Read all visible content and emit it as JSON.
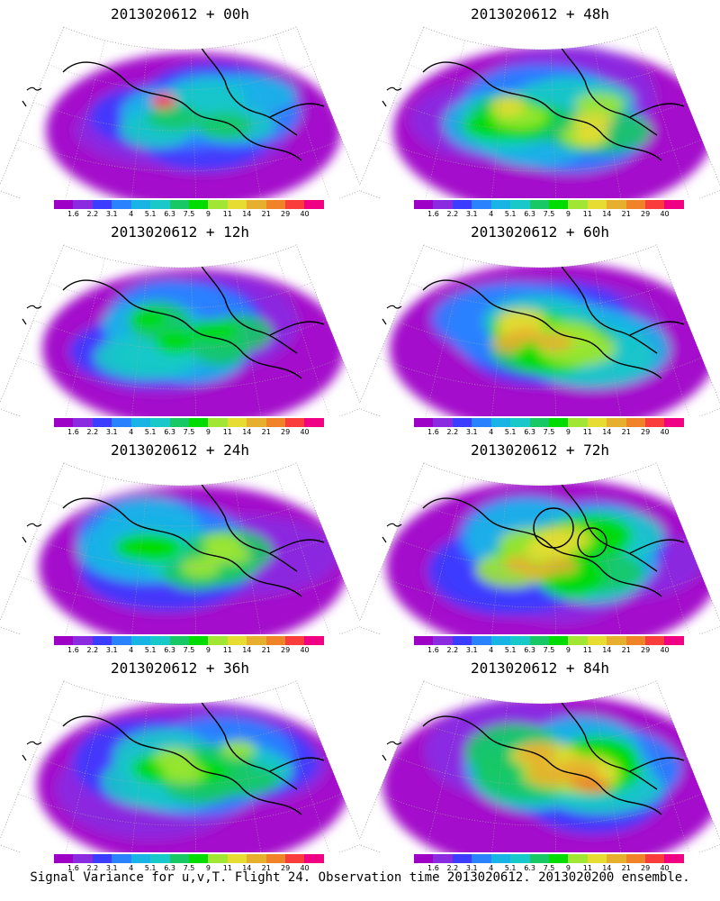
{
  "panels": [
    {
      "id": "p00",
      "title": "2013020612 + 00h",
      "intensity": 0.35
    },
    {
      "id": "p48",
      "title": "2013020612 + 48h",
      "intensity": 0.7
    },
    {
      "id": "p12",
      "title": "2013020612 + 12h",
      "intensity": 0.45
    },
    {
      "id": "p60",
      "title": "2013020612 + 60h",
      "intensity": 0.8
    },
    {
      "id": "p24",
      "title": "2013020612 + 24h",
      "intensity": 0.55
    },
    {
      "id": "p72",
      "title": "2013020612 + 72h",
      "intensity": 0.9
    },
    {
      "id": "p36",
      "title": "2013020612 + 36h",
      "intensity": 0.6
    },
    {
      "id": "p84",
      "title": "2013020612 + 84h",
      "intensity": 1.0
    }
  ],
  "colorbar": {
    "labels": [
      "1.6",
      "2.2",
      "3.1",
      "4",
      "5.1",
      "6.3",
      "7.5",
      "9",
      "11",
      "14",
      "21",
      "29",
      "40"
    ],
    "colors": [
      "#9e00c8",
      "#8a2be2",
      "#3c3cff",
      "#2a82ff",
      "#18b4e6",
      "#19c8c8",
      "#18c864",
      "#00dc00",
      "#a0e632",
      "#e6dc32",
      "#e6af2d",
      "#f08228",
      "#fa3c3c",
      "#f00082"
    ]
  },
  "caption": "Signal Variance for u,v,T. Flight 24. Observation time 2013020612. 2013020200 ensemble."
}
